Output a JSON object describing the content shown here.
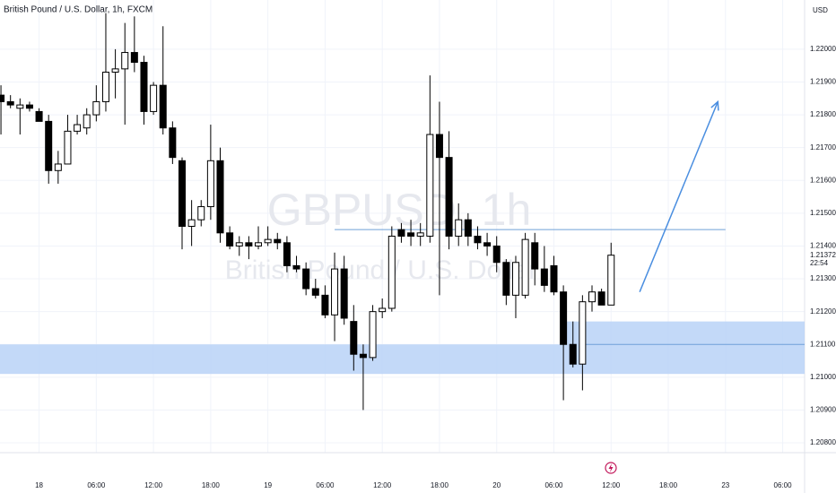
{
  "chart_data": {
    "type": "candlestick",
    "title": "British Pound / U.S. Dollar, 1h, FXCM",
    "currency": "USD",
    "watermark": "GBPUSD, 1h",
    "watermark_subtitle": "British Pound / U.S. Dollar",
    "countdown": "22:54",
    "x": [
      0,
      1,
      2,
      3,
      4,
      5,
      6,
      7,
      8,
      9,
      10,
      11,
      12,
      13,
      14,
      15,
      16,
      17,
      18,
      19,
      20,
      21,
      22,
      23,
      24,
      25,
      26,
      27,
      28,
      29,
      30,
      31,
      32,
      33,
      34,
      35,
      36,
      37,
      38,
      39,
      40,
      41,
      42,
      43,
      44,
      45,
      46,
      47,
      48,
      49,
      50,
      51,
      52,
      53,
      54,
      55,
      56,
      57,
      58,
      59,
      60,
      61,
      62,
      63,
      64
    ],
    "open": [
      1.2186,
      1.2184,
      1.2182,
      1.2183,
      1.2181,
      1.2178,
      1.2163,
      1.2165,
      1.2175,
      1.2176,
      1.218,
      1.2184,
      1.2193,
      1.2194,
      1.2199,
      1.2196,
      1.2181,
      1.2189,
      1.2176,
      1.2166,
      1.2146,
      1.2148,
      1.2152,
      1.2166,
      1.2144,
      1.214,
      1.2141,
      1.214,
      1.2141,
      1.2142,
      1.2141,
      1.2134,
      1.2133,
      1.2127,
      1.2125,
      1.2119,
      1.2133,
      1.2117,
      1.2107,
      1.2106,
      1.212,
      1.2121,
      1.2145,
      1.2144,
      1.2143,
      1.2143,
      1.2174,
      1.2167,
      1.2143,
      1.2148,
      1.2143,
      1.2141,
      1.214,
      1.2135,
      1.2125,
      1.2125,
      1.2141,
      1.2133,
      1.2134,
      1.2126,
      1.211,
      1.2104,
      1.2123,
      1.2126,
      1.2122
    ],
    "high": [
      1.2189,
      1.2186,
      1.2185,
      1.2184,
      1.2182,
      1.218,
      1.2169,
      1.218,
      1.218,
      1.2182,
      1.2189,
      1.2211,
      1.22,
      1.2208,
      1.221,
      1.2198,
      1.219,
      1.2207,
      1.2178,
      1.2167,
      1.2154,
      1.2154,
      1.2177,
      1.217,
      1.2146,
      1.2143,
      1.2143,
      1.2146,
      1.2146,
      1.2144,
      1.2143,
      1.2137,
      1.2135,
      1.213,
      1.2128,
      1.2138,
      1.2137,
      1.2122,
      1.211,
      1.2122,
      1.2124,
      1.2146,
      1.2147,
      1.2148,
      1.2147,
      1.2192,
      1.2184,
      1.2175,
      1.2153,
      1.215,
      1.2146,
      1.2144,
      1.2143,
      1.2136,
      1.2137,
      1.2144,
      1.2144,
      1.214,
      1.2137,
      1.2128,
      1.2117,
      1.2125,
      1.2128,
      1.2127,
      1.2141
    ],
    "low": [
      1.2174,
      1.2182,
      1.2174,
      1.2181,
      1.2178,
      1.2159,
      1.2159,
      1.2165,
      1.2174,
      1.2174,
      1.2178,
      1.2181,
      1.2185,
      1.2177,
      1.2193,
      1.2177,
      1.218,
      1.2174,
      1.2165,
      1.2139,
      1.214,
      1.2146,
      1.2148,
      1.2141,
      1.2139,
      1.2137,
      1.2136,
      1.2139,
      1.214,
      1.2139,
      1.2132,
      1.2132,
      1.2125,
      1.2124,
      1.2118,
      1.2111,
      1.2116,
      1.2102,
      1.209,
      1.2105,
      1.2118,
      1.212,
      1.2141,
      1.214,
      1.214,
      1.2141,
      1.2125,
      1.2139,
      1.214,
      1.214,
      1.2139,
      1.2137,
      1.2132,
      1.2122,
      1.2118,
      1.2124,
      1.2128,
      1.2126,
      1.2125,
      1.2093,
      1.2103,
      1.2096,
      1.212,
      1.2122,
      1.2122
    ],
    "close": [
      1.2184,
      1.2183,
      1.2183,
      1.2182,
      1.2178,
      1.2163,
      1.2165,
      1.2175,
      1.2177,
      1.218,
      1.2184,
      1.2193,
      1.2194,
      1.2199,
      1.2196,
      1.2181,
      1.2189,
      1.2176,
      1.2167,
      1.2146,
      1.2148,
      1.2152,
      1.2166,
      1.2144,
      1.214,
      1.2141,
      1.214,
      1.2141,
      1.2142,
      1.2141,
      1.2134,
      1.2133,
      1.2127,
      1.2125,
      1.2119,
      1.2133,
      1.2118,
      1.2107,
      1.2106,
      1.212,
      1.2121,
      1.2143,
      1.2143,
      1.2143,
      1.2144,
      1.2174,
      1.2167,
      1.2143,
      1.2148,
      1.2143,
      1.2141,
      1.214,
      1.2135,
      1.2125,
      1.2135,
      1.2142,
      1.2133,
      1.2128,
      1.2126,
      1.211,
      1.2104,
      1.2123,
      1.2126,
      1.2122,
      1.21372
    ],
    "up_color": "#ffffff",
    "down_color": "#000000",
    "xlim": [
      -0.1,
      84.3
    ],
    "ylim": [
      1.2077,
      1.2215
    ],
    "xticks": [
      {
        "value": 4,
        "label": "18"
      },
      {
        "value": 10,
        "label": "06:00"
      },
      {
        "value": 16,
        "label": "12:00"
      },
      {
        "value": 22,
        "label": "18:00"
      },
      {
        "value": 28,
        "label": "19"
      },
      {
        "value": 34,
        "label": "06:00"
      },
      {
        "value": 40,
        "label": "12:00"
      },
      {
        "value": 46,
        "label": "18:00"
      },
      {
        "value": 52,
        "label": "20"
      },
      {
        "value": 58,
        "label": "06:00"
      },
      {
        "value": 64,
        "label": "12:00"
      },
      {
        "value": 70,
        "label": "18:00"
      },
      {
        "value": 76,
        "label": "23"
      },
      {
        "value": 82,
        "label": "06:00"
      }
    ],
    "yticks": [
      {
        "value": 1.208,
        "label": "1.20800"
      },
      {
        "value": 1.209,
        "label": "1.20900"
      },
      {
        "value": 1.21,
        "label": "1.21000"
      },
      {
        "value": 1.211,
        "label": "1.21100"
      },
      {
        "value": 1.212,
        "label": "1.21200"
      },
      {
        "value": 1.213,
        "label": "1.21300"
      },
      {
        "value": 1.214,
        "label": "1.21400"
      },
      {
        "value": 1.215,
        "label": "1.21500"
      },
      {
        "value": 1.216,
        "label": "1.21600"
      },
      {
        "value": 1.217,
        "label": "1.21700"
      },
      {
        "value": 1.218,
        "label": "1.21800"
      },
      {
        "value": 1.219,
        "label": "1.21900"
      },
      {
        "value": 1.22,
        "label": "1.22000"
      }
    ],
    "grid": true,
    "hline": {
      "x": [
        35,
        76
      ],
      "value": 1.2145,
      "color": "#6fa0d8"
    },
    "zones": [
      {
        "x": [
          -0.1,
          59
        ],
        "range": [
          1.2101,
          1.211
        ],
        "color": "#b8d2f7"
      },
      {
        "x": [
          59,
          84.3
        ],
        "range": [
          1.2101,
          1.2117
        ],
        "color": "#b8d2f7"
      }
    ],
    "zone_line": {
      "x": [
        61,
        84.3
      ],
      "value": 1.211,
      "color": "#6fa0d8"
    },
    "arrow": {
      "x": [
        67,
        75.2
      ],
      "y": [
        1.2126,
        1.2184
      ],
      "color": "#4a8ee0"
    }
  }
}
